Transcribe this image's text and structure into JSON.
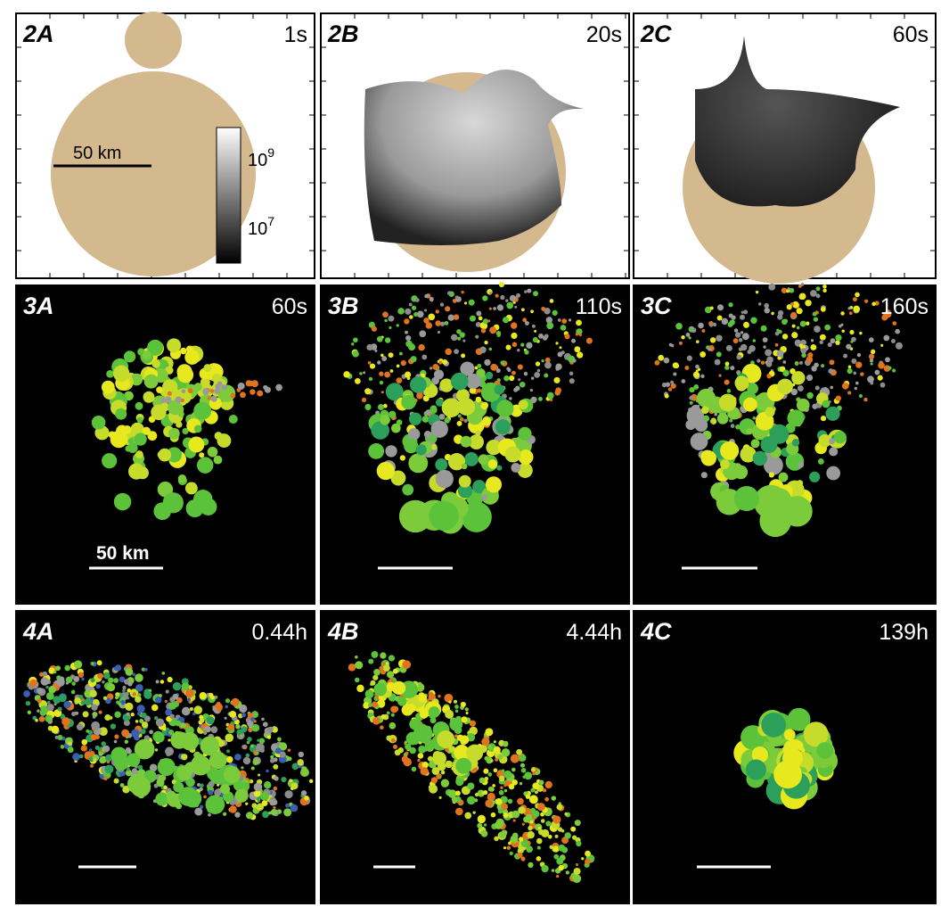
{
  "panels": [
    {
      "label": "2A",
      "time": "1s"
    },
    {
      "label": "2B",
      "time": "20s"
    },
    {
      "label": "2C",
      "time": "60s"
    },
    {
      "label": "3A",
      "time": "60s"
    },
    {
      "label": "3B",
      "time": "110s"
    },
    {
      "label": "3C",
      "time": "160s"
    },
    {
      "label": "4A",
      "time": "0.44h"
    },
    {
      "label": "4B",
      "time": "4.44h"
    },
    {
      "label": "4C",
      "time": "139h"
    }
  ],
  "scale_bar_labels": {
    "panel_2A": "50 km",
    "panel_3A": "50 km"
  },
  "colorbar": {
    "ticks": [
      {
        "base": "10",
        "exponent": "9"
      },
      {
        "base": "10",
        "exponent": "7"
      }
    ]
  }
}
